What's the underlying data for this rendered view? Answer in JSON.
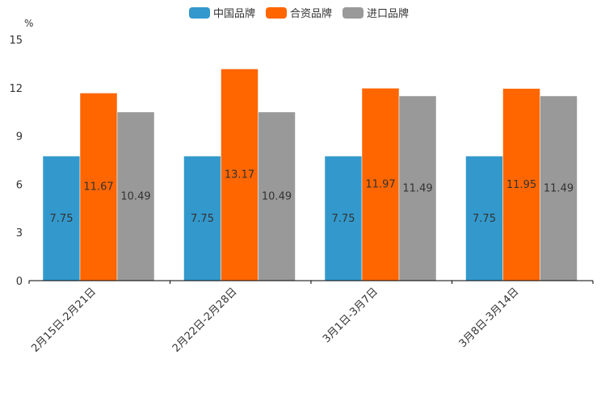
{
  "chart_data": {
    "type": "bar",
    "title": "",
    "xlabel": "",
    "ylabel": "%",
    "ylim": [
      0,
      15
    ],
    "yticks": [
      0,
      3,
      6,
      9,
      12,
      15
    ],
    "grid": false,
    "legend_position": "top-center",
    "categories": [
      "2月15日-2月21日",
      "2月22日-2月28日",
      "3月1日-3月7日",
      "3月8日-3月14日"
    ],
    "series": [
      {
        "name": "中国品牌",
        "color": "#3399cc",
        "values": [
          7.75,
          7.75,
          7.75,
          7.75
        ]
      },
      {
        "name": "合资品牌",
        "color": "#ff6600",
        "values": [
          11.67,
          13.17,
          11.97,
          11.95
        ]
      },
      {
        "name": "进口品牌",
        "color": "#999999",
        "values": [
          10.49,
          10.49,
          11.49,
          11.49
        ]
      }
    ]
  }
}
